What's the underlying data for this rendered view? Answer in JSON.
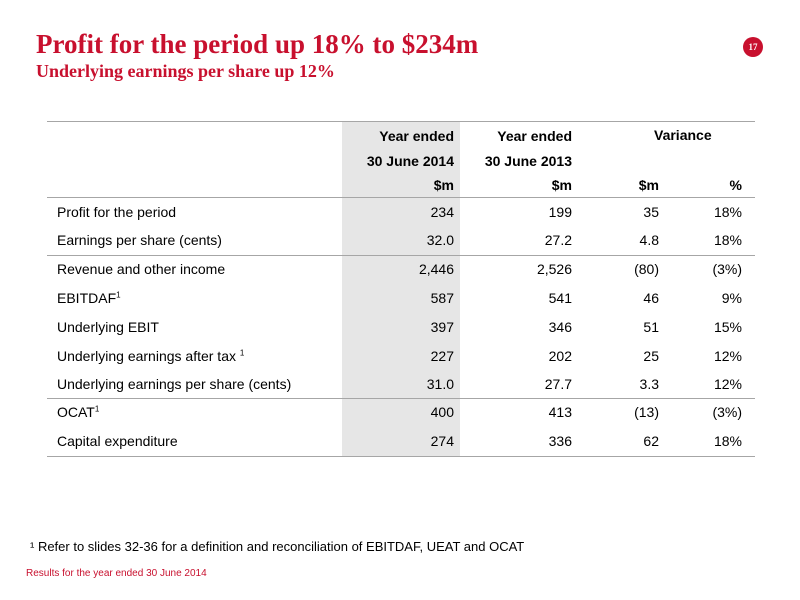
{
  "header": {
    "title": "Profit for the period up 18% to $234m",
    "subtitle": "Underlying earnings per share up 12%",
    "page_number": "17",
    "accent_color": "#c8102e"
  },
  "table": {
    "col_headers": {
      "current_line1": "Year ended",
      "current_line2": "30 June 2014",
      "current_unit": "$m",
      "prior_line1": "Year ended",
      "prior_line2": "30 June 2013",
      "prior_unit": "$m",
      "variance": "Variance",
      "variance_unit": "$m",
      "variance_pct_unit": "%"
    },
    "rows": [
      {
        "label": "Profit for the period",
        "sup": "",
        "current": "234",
        "prior": "199",
        "var": "35",
        "pct": "18%"
      },
      {
        "label": "Earnings per share (cents)",
        "sup": "",
        "current": "32.0",
        "prior": "27.2",
        "var": "4.8",
        "pct": "18%"
      },
      {
        "label": "Revenue and other income",
        "sup": "",
        "current": "2,446",
        "prior": "2,526",
        "var": "(80)",
        "pct": "(3%)"
      },
      {
        "label": "EBITDAF",
        "sup": "1",
        "current": "587",
        "prior": "541",
        "var": "46",
        "pct": "9%"
      },
      {
        "label": "Underlying EBIT",
        "sup": "",
        "current": "397",
        "prior": "346",
        "var": "51",
        "pct": "15%"
      },
      {
        "label": "Underlying earnings after tax ",
        "sup": "1",
        "current": "227",
        "prior": "202",
        "var": "25",
        "pct": "12%"
      },
      {
        "label": "Underlying earnings per share (cents)",
        "sup": "",
        "current": "31.0",
        "prior": "27.7",
        "var": "3.3",
        "pct": "12%"
      },
      {
        "label": "OCAT",
        "sup": "1",
        "current": "400",
        "prior": "413",
        "var": "(13)",
        "pct": "(3%)"
      },
      {
        "label": "Capital expenditure",
        "sup": "",
        "current": "274",
        "prior": "336",
        "var": "62",
        "pct": "18%"
      }
    ]
  },
  "footnote": "¹ Refer to slides 32-36 for a definition and reconciliation of EBITDAF, UEAT and OCAT",
  "footer": "Results for the year ended 30 June 2014"
}
